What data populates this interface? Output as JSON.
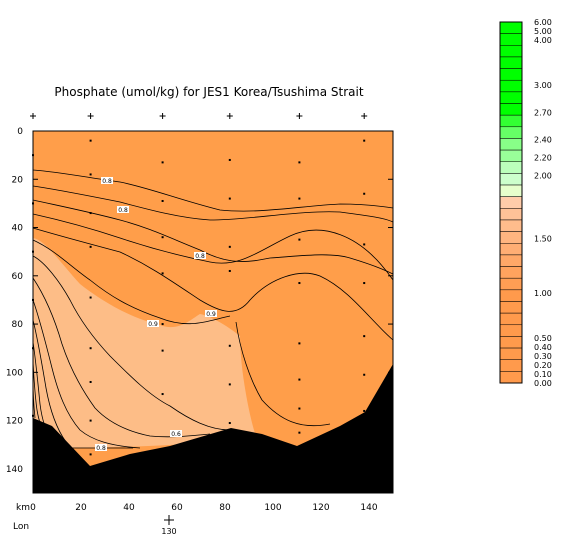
{
  "chart_data": {
    "type": "contour",
    "title": "Phosphate (umol/kg) for JES1 Korea/Tsushima Strait",
    "x_unit_label": "km",
    "lon_label": "Lon",
    "lon_value": "130",
    "xlim": [
      0,
      150
    ],
    "ylim": [
      150,
      0
    ],
    "x_ticks": [
      "0",
      "20",
      "40",
      "60",
      "80",
      "100",
      "120",
      "140"
    ],
    "y_ticks": [
      "0",
      "20",
      "40",
      "60",
      "80",
      "100",
      "120",
      "140"
    ],
    "station_x_km": [
      0,
      24,
      54,
      82,
      111,
      138
    ],
    "station_samples": [
      [
        0,
        10
      ],
      [
        0,
        30
      ],
      [
        0,
        50
      ],
      [
        0,
        70
      ],
      [
        0,
        90
      ],
      [
        0,
        118
      ],
      [
        24,
        4
      ],
      [
        24,
        18
      ],
      [
        24,
        34
      ],
      [
        24,
        48
      ],
      [
        24,
        69
      ],
      [
        24,
        90
      ],
      [
        24,
        104
      ],
      [
        24,
        120
      ],
      [
        24,
        134
      ],
      [
        54,
        13
      ],
      [
        54,
        29
      ],
      [
        54,
        44
      ],
      [
        54,
        59
      ],
      [
        54,
        80
      ],
      [
        54,
        91
      ],
      [
        54,
        109
      ],
      [
        82,
        12
      ],
      [
        82,
        28
      ],
      [
        82,
        48
      ],
      [
        82,
        58
      ],
      [
        82,
        89
      ],
      [
        82,
        105
      ],
      [
        82,
        121
      ],
      [
        111,
        13
      ],
      [
        111,
        28
      ],
      [
        111,
        45
      ],
      [
        111,
        63
      ],
      [
        111,
        88
      ],
      [
        111,
        103
      ],
      [
        111,
        115
      ],
      [
        111,
        125
      ],
      [
        138,
        4
      ],
      [
        138,
        26
      ],
      [
        138,
        47
      ],
      [
        138,
        63
      ],
      [
        138,
        85
      ],
      [
        138,
        101
      ],
      [
        138,
        116
      ]
    ],
    "contour_labels": [
      "0.8",
      "0.8",
      "0.8",
      "0.9",
      "0.9",
      "0.6",
      "0.8"
    ],
    "bottom_color": "#000000",
    "fill_colors": {
      "high": "#ff9e4a",
      "low": "#fdbd87",
      "bottom": "#000000"
    },
    "color_scale": {
      "levels": [
        "6.00",
        "5.00",
        "4.00",
        "3.00",
        "2.70",
        "2.40",
        "2.20",
        "2.00",
        "1.50",
        "1.00",
        "0.50",
        "0.40",
        "0.30",
        "0.20",
        "0.10",
        "0.00"
      ],
      "colors": [
        "#00ff00",
        "#00ff00",
        "#00ff00",
        "#00ff00",
        "#00ff00",
        "#00ff00",
        "#00ff00",
        "#00ff00",
        "#33ff33",
        "#66ff66",
        "#88ff88",
        "#99ff99",
        "#bbffbb",
        "#ccffcc",
        "#e6ffcc",
        "#ffccaa",
        "#ffc298",
        "#ffbc8c",
        "#ffb580",
        "#ffae74",
        "#ffa868",
        "#ffa35e",
        "#ff9e54",
        "#ff9a4c",
        "#ff9a4c",
        "#ff9a4c",
        "#ff9a4c",
        "#ff9a4c",
        "#ff9a4c",
        "#ff9a4c",
        "#ff9a4c"
      ]
    }
  }
}
